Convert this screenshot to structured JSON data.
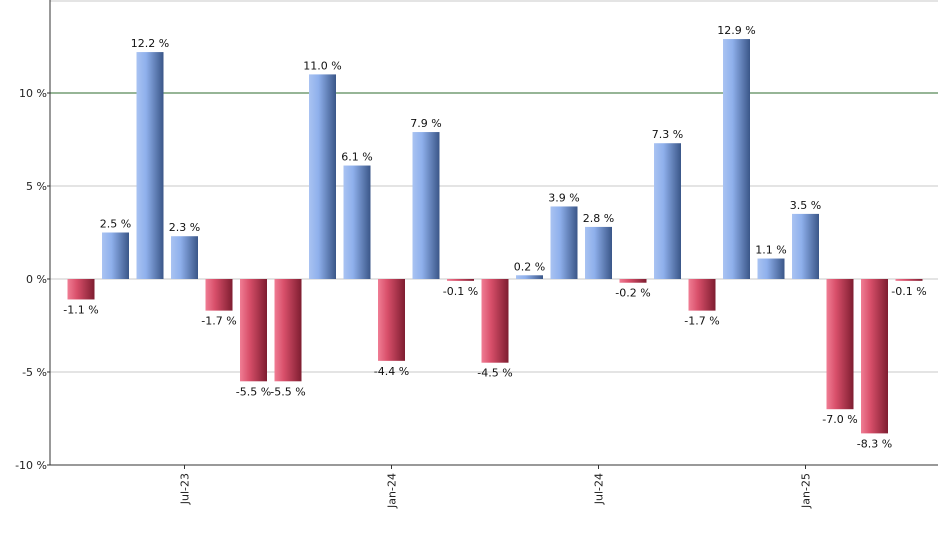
{
  "chart_data": {
    "type": "bar",
    "title": "",
    "xlabel": "",
    "ylabel": "",
    "ylim": [
      -10,
      15
    ],
    "y_ticks": [
      {
        "value": -10,
        "label": "-10 %"
      },
      {
        "value": -5,
        "label": "-5 %"
      },
      {
        "value": 0,
        "label": "0 %"
      },
      {
        "value": 5,
        "label": "5 %"
      },
      {
        "value": 10,
        "label": "10 %"
      }
    ],
    "reference_line": {
      "value": 10,
      "color": "#2e6b2e"
    },
    "grid": true,
    "colors": {
      "positive": "#6f93d8",
      "negative": "#c8405a"
    },
    "values": [
      -1.1,
      2.5,
      12.2,
      2.3,
      -1.7,
      -5.5,
      -5.5,
      11.0,
      6.1,
      -4.4,
      7.9,
      -0.1,
      -4.5,
      0.2,
      3.9,
      2.8,
      -0.2,
      7.3,
      -1.7,
      12.9,
      1.1,
      3.5,
      -7.0,
      -8.3,
      -0.1
    ],
    "value_labels": [
      "-1.1 %",
      "2.5 %",
      "12.2 %",
      "2.3 %",
      "-1.7 %",
      "-5.5 %",
      "-5.5 %",
      "11.0 %",
      "6.1 %",
      "-4.4 %",
      "7.9 %",
      "-0.1 %",
      "-4.5 %",
      "0.2 %",
      "3.9 %",
      "2.8 %",
      "-0.2 %",
      "7.3 %",
      "-1.7 %",
      "12.9 %",
      "1.1 %",
      "3.5 %",
      "-7.0 %",
      "-8.3 %",
      "-0.1 %"
    ],
    "x_ticks": [
      {
        "index": 3,
        "label": "Jul-23"
      },
      {
        "index": 9,
        "label": "Jan-24"
      },
      {
        "index": 15,
        "label": "Jul-24"
      },
      {
        "index": 21,
        "label": "Jan-25"
      }
    ]
  }
}
